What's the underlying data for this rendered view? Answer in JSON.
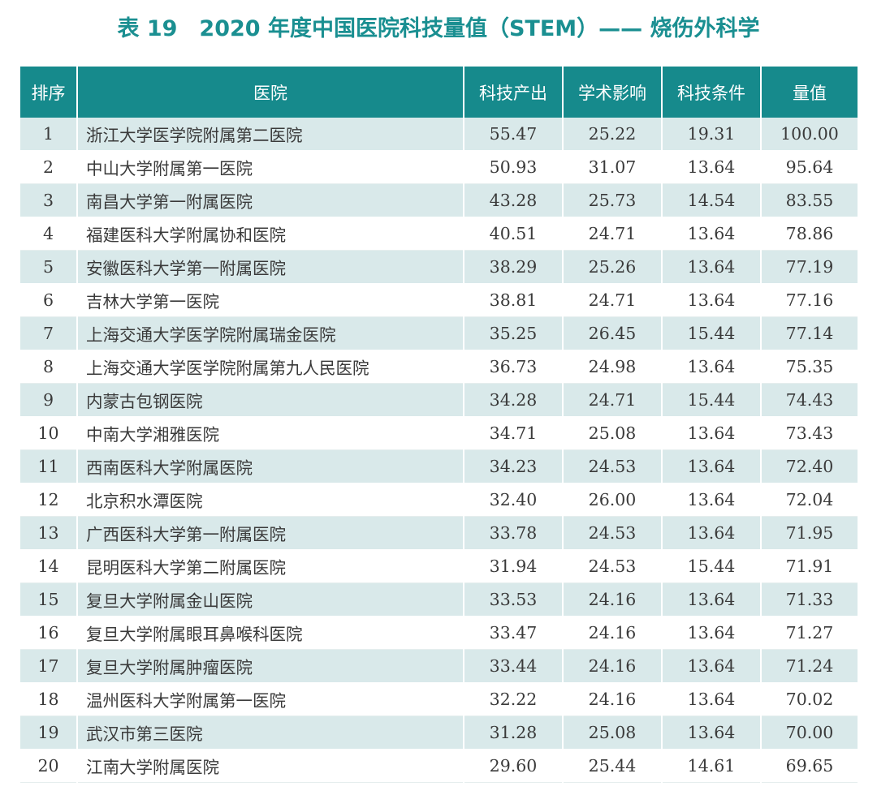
{
  "title": "表 19　2020 年度中国医院科技量值（STEM）—— 烧伤外科学",
  "columns": {
    "rank": "排序",
    "hospital": "医院",
    "output": "科技产出",
    "impact": "学术影响",
    "conditions": "科技条件",
    "value": "量值"
  },
  "rows": [
    {
      "rank": "1",
      "hospital": "浙江大学医学院附属第二医院",
      "output": "55.47",
      "impact": "25.22",
      "conditions": "19.31",
      "value": "100.00"
    },
    {
      "rank": "2",
      "hospital": "中山大学附属第一医院",
      "output": "50.93",
      "impact": "31.07",
      "conditions": "13.64",
      "value": "95.64"
    },
    {
      "rank": "3",
      "hospital": "南昌大学第一附属医院",
      "output": "43.28",
      "impact": "25.73",
      "conditions": "14.54",
      "value": "83.55"
    },
    {
      "rank": "4",
      "hospital": "福建医科大学附属协和医院",
      "output": "40.51",
      "impact": "24.71",
      "conditions": "13.64",
      "value": "78.86"
    },
    {
      "rank": "5",
      "hospital": "安徽医科大学第一附属医院",
      "output": "38.29",
      "impact": "25.26",
      "conditions": "13.64",
      "value": "77.19"
    },
    {
      "rank": "6",
      "hospital": "吉林大学第一医院",
      "output": "38.81",
      "impact": "24.71",
      "conditions": "13.64",
      "value": "77.16"
    },
    {
      "rank": "7",
      "hospital": "上海交通大学医学院附属瑞金医院",
      "output": "35.25",
      "impact": "26.45",
      "conditions": "15.44",
      "value": "77.14"
    },
    {
      "rank": "8",
      "hospital": "上海交通大学医学院附属第九人民医院",
      "output": "36.73",
      "impact": "24.98",
      "conditions": "13.64",
      "value": "75.35"
    },
    {
      "rank": "9",
      "hospital": "内蒙古包钢医院",
      "output": "34.28",
      "impact": "24.71",
      "conditions": "15.44",
      "value": "74.43"
    },
    {
      "rank": "10",
      "hospital": "中南大学湘雅医院",
      "output": "34.71",
      "impact": "25.08",
      "conditions": "13.64",
      "value": "73.43"
    },
    {
      "rank": "11",
      "hospital": "西南医科大学附属医院",
      "output": "34.23",
      "impact": "24.53",
      "conditions": "13.64",
      "value": "72.40"
    },
    {
      "rank": "12",
      "hospital": "北京积水潭医院",
      "output": "32.40",
      "impact": "26.00",
      "conditions": "13.64",
      "value": "72.04"
    },
    {
      "rank": "13",
      "hospital": "广西医科大学第一附属医院",
      "output": "33.78",
      "impact": "24.53",
      "conditions": "13.64",
      "value": "71.95"
    },
    {
      "rank": "14",
      "hospital": "昆明医科大学第二附属医院",
      "output": "31.94",
      "impact": "24.53",
      "conditions": "15.44",
      "value": "71.91"
    },
    {
      "rank": "15",
      "hospital": "复旦大学附属金山医院",
      "output": "33.53",
      "impact": "24.16",
      "conditions": "13.64",
      "value": "71.33"
    },
    {
      "rank": "16",
      "hospital": "复旦大学附属眼耳鼻喉科医院",
      "output": "33.47",
      "impact": "24.16",
      "conditions": "13.64",
      "value": "71.27"
    },
    {
      "rank": "17",
      "hospital": "复旦大学附属肿瘤医院",
      "output": "33.44",
      "impact": "24.16",
      "conditions": "13.64",
      "value": "71.24"
    },
    {
      "rank": "18",
      "hospital": "温州医科大学附属第一医院",
      "output": "32.22",
      "impact": "24.16",
      "conditions": "13.64",
      "value": "70.02"
    },
    {
      "rank": "19",
      "hospital": "武汉市第三医院",
      "output": "31.28",
      "impact": "25.08",
      "conditions": "13.64",
      "value": "70.00"
    },
    {
      "rank": "20",
      "hospital": "江南大学附属医院",
      "output": "29.60",
      "impact": "25.44",
      "conditions": "14.61",
      "value": "69.65"
    }
  ],
  "colors": {
    "header_bg": "#168a8c",
    "title": "#1a8f91",
    "row_stripe": "#d9e9ea"
  }
}
